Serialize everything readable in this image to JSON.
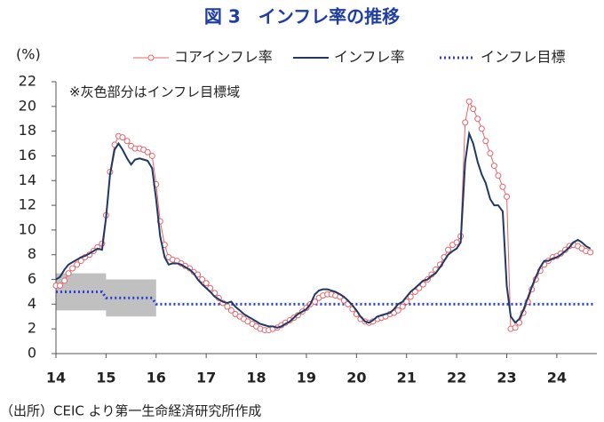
{
  "chart_data": {
    "type": "line",
    "title": "図 3　インフレ率の推移",
    "y_label": "(%)",
    "annotation": "※灰色部分はインフレ目標域",
    "source": "（出所）CEIC より第一生命経済研究所作成",
    "xlim": [
      14,
      24.8
    ],
    "xticks": [
      14,
      15,
      16,
      17,
      18,
      19,
      20,
      21,
      22,
      23,
      24
    ],
    "ylim": [
      0,
      22
    ],
    "yticks": [
      0,
      2,
      4,
      6,
      8,
      10,
      12,
      14,
      16,
      18,
      20,
      22
    ],
    "grid": false,
    "legend": "top",
    "x": [
      14,
      14.08,
      14.17,
      14.25,
      14.33,
      14.42,
      14.5,
      14.58,
      14.67,
      14.75,
      14.83,
      14.92,
      15,
      15.08,
      15.17,
      15.25,
      15.33,
      15.42,
      15.5,
      15.58,
      15.67,
      15.75,
      15.83,
      15.92,
      16,
      16.08,
      16.17,
      16.25,
      16.33,
      16.42,
      16.5,
      16.58,
      16.67,
      16.75,
      16.83,
      16.92,
      17,
      17.08,
      17.17,
      17.25,
      17.33,
      17.42,
      17.5,
      17.58,
      17.67,
      17.75,
      17.83,
      17.92,
      18,
      18.08,
      18.17,
      18.25,
      18.33,
      18.42,
      18.5,
      18.58,
      18.67,
      18.75,
      18.83,
      18.92,
      19,
      19.08,
      19.17,
      19.25,
      19.33,
      19.42,
      19.5,
      19.58,
      19.67,
      19.75,
      19.83,
      19.92,
      20,
      20.08,
      20.17,
      20.25,
      20.33,
      20.42,
      20.5,
      20.58,
      20.67,
      20.75,
      20.83,
      20.92,
      21,
      21.08,
      21.17,
      21.25,
      21.33,
      21.42,
      21.5,
      21.58,
      21.67,
      21.75,
      21.83,
      21.92,
      22,
      22.08,
      22.17,
      22.25,
      22.33,
      22.42,
      22.5,
      22.58,
      22.67,
      22.75,
      22.83,
      22.92,
      23,
      23.08,
      23.17,
      23.25,
      23.33,
      23.42,
      23.5,
      23.58,
      23.67,
      23.75,
      23.83,
      23.92,
      24,
      24.08,
      24.17,
      24.25,
      24.33,
      24.42,
      24.5,
      24.58,
      24.67
    ],
    "series": [
      {
        "name": "コアインフレ率",
        "color": "#e8646a",
        "marker": "circle",
        "values": [
          5.5,
          5.5,
          5.9,
          6.5,
          6.9,
          7.2,
          7.5,
          7.8,
          8.0,
          8.3,
          8.6,
          8.9,
          11.2,
          14.7,
          16.9,
          17.6,
          17.5,
          17.2,
          16.8,
          16.6,
          16.6,
          16.5,
          16.3,
          16.0,
          13.7,
          10.7,
          8.8,
          7.8,
          7.6,
          7.5,
          7.3,
          7.1,
          6.9,
          6.6,
          6.4,
          6.0,
          5.7,
          5.3,
          4.9,
          4.5,
          4.1,
          3.8,
          3.5,
          3.2,
          3.0,
          2.8,
          2.6,
          2.4,
          2.2,
          2.0,
          1.9,
          1.9,
          2.0,
          2.1,
          2.3,
          2.5,
          2.7,
          2.9,
          3.1,
          3.4,
          3.7,
          4.0,
          4.2,
          4.5,
          4.7,
          4.8,
          4.8,
          4.7,
          4.6,
          4.3,
          4.0,
          3.6,
          3.2,
          2.8,
          2.6,
          2.5,
          2.6,
          2.8,
          2.9,
          3.0,
          3.2,
          3.3,
          3.5,
          3.8,
          4.2,
          4.6,
          5.0,
          5.3,
          5.6,
          6.0,
          6.4,
          6.8,
          7.2,
          7.8,
          8.4,
          8.8,
          9.0,
          9.5,
          18.7,
          20.4,
          19.8,
          19.0,
          18.2,
          17.2,
          16.2,
          15.2,
          14.4,
          13.5,
          12.7,
          2.0,
          2.1,
          2.5,
          3.3,
          4.2,
          5.2,
          6.0,
          6.7,
          7.2,
          7.5,
          7.8,
          7.9,
          8.1,
          8.4,
          8.7,
          8.8,
          8.7,
          8.5,
          8.3,
          8.2
        ]
      },
      {
        "name": "インフレ率",
        "color": "#1f3864",
        "values": [
          6.0,
          6.2,
          6.8,
          7.2,
          7.4,
          7.6,
          7.8,
          7.9,
          8.1,
          8.3,
          8.5,
          8.4,
          11.0,
          14.5,
          16.5,
          17.0,
          16.5,
          15.8,
          15.3,
          15.7,
          15.8,
          15.7,
          15.6,
          15.0,
          12.5,
          9.5,
          7.8,
          7.2,
          7.3,
          7.3,
          7.2,
          7.0,
          6.8,
          6.5,
          6.0,
          5.6,
          5.3,
          5.0,
          4.6,
          4.4,
          4.2,
          4.1,
          4.2,
          3.8,
          3.5,
          3.2,
          3.0,
          2.8,
          2.6,
          2.4,
          2.3,
          2.2,
          2.2,
          2.1,
          2.2,
          2.4,
          2.6,
          2.9,
          3.2,
          3.4,
          3.6,
          4.0,
          4.8,
          5.1,
          5.2,
          5.2,
          5.1,
          5.0,
          4.8,
          4.6,
          4.3,
          3.9,
          3.5,
          3.0,
          2.6,
          2.5,
          2.7,
          3.0,
          3.1,
          3.2,
          3.3,
          3.6,
          4.0,
          4.2,
          4.6,
          5.0,
          5.3,
          5.6,
          5.9,
          6.0,
          6.3,
          6.5,
          7.0,
          7.5,
          8.0,
          8.3,
          8.5,
          9.0,
          15.5,
          17.8,
          17.0,
          15.5,
          14.5,
          13.8,
          12.5,
          12.0,
          12.0,
          11.5,
          5.5,
          3.0,
          2.5,
          2.8,
          3.5,
          4.5,
          5.4,
          6.2,
          7.0,
          7.5,
          7.5,
          7.7,
          7.8,
          8.0,
          8.3,
          8.6,
          9.0,
          9.2,
          9.0,
          8.7,
          8.5
        ]
      }
    ],
    "target": {
      "name": "インフレ目標",
      "color": "#2b3fd6",
      "dash": "dot",
      "x": [
        14,
        14.92,
        15,
        15.92,
        16,
        24.75
      ],
      "values": [
        5,
        5,
        4.5,
        4.5,
        4,
        4
      ]
    },
    "band": {
      "color": "#c0c0c0",
      "x": [
        14,
        15,
        15,
        16
      ],
      "lower": [
        3.5,
        3.5,
        3,
        3
      ],
      "upper": [
        6.5,
        6.5,
        6,
        6
      ]
    }
  }
}
